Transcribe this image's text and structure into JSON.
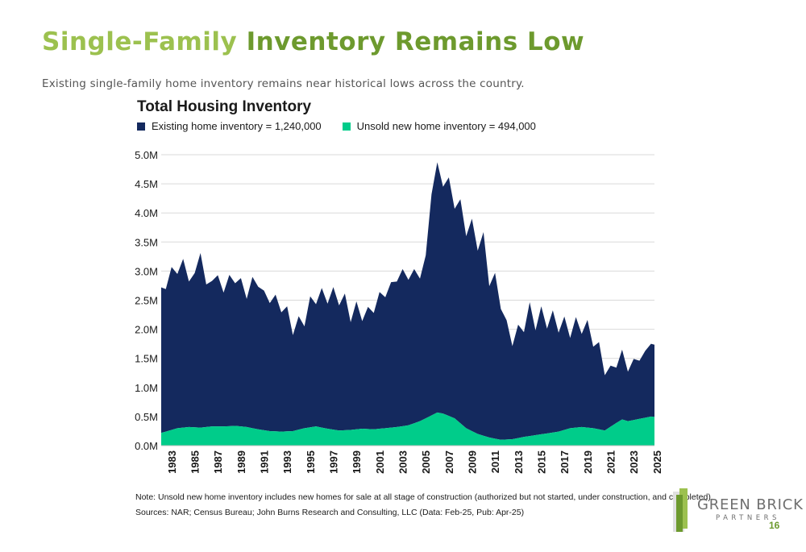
{
  "slide": {
    "title_part1": "Single-Family",
    "title_part2": "Inventory Remains Low",
    "subtitle": "Existing single-family home inventory remains near historical lows across the country.",
    "note": "Note: Unsold new home inventory includes new homes for sale at all stage of construction (authorized but not started, under construction, and completed).",
    "sources": "Sources: NAR; Census Bureau; John Burns Research and Consulting, LLC (Data: Feb-25, Pub: Apr-25)",
    "logo_line1": "GREEN BRICK",
    "logo_line2": "PARTNERS",
    "page_number": "16",
    "colors": {
      "title_light": "#9cc14f",
      "title_dark": "#6d9a2e",
      "existing": "#14295e",
      "new": "#00cc8a"
    }
  },
  "chart_data": {
    "type": "area",
    "stacked": true,
    "title": "Total Housing Inventory",
    "ylim": [
      0,
      5000000
    ],
    "y_ticks": [
      "0.0M",
      "0.5M",
      "1.0M",
      "1.5M",
      "2.0M",
      "2.5M",
      "3.0M",
      "3.5M",
      "4.0M",
      "4.5M",
      "5.0M"
    ],
    "x_ticks": [
      "1983",
      "1985",
      "1987",
      "1989",
      "1991",
      "1993",
      "1995",
      "1997",
      "1999",
      "2001",
      "2003",
      "2005",
      "2007",
      "2009",
      "2011",
      "2013",
      "2015",
      "2017",
      "2019",
      "2021",
      "2023",
      "2025"
    ],
    "x_range": [
      1982.6,
      2025.3
    ],
    "grid": true,
    "legend_position": "top-left",
    "series": [
      {
        "name": "Existing home inventory = 1,240,000",
        "color": "#14295e",
        "x": [
          1982.6,
          1983,
          1983.5,
          1984,
          1984.5,
          1985,
          1985.5,
          1986,
          1986.5,
          1987,
          1987.5,
          1988,
          1988.5,
          1989,
          1989.5,
          1990,
          1990.5,
          1991,
          1991.5,
          1992,
          1992.5,
          1993,
          1993.5,
          1994,
          1994.5,
          1995,
          1995.5,
          1996,
          1996.5,
          1997,
          1997.5,
          1998,
          1998.5,
          1999,
          1999.5,
          2000,
          2000.5,
          2001,
          2001.5,
          2002,
          2002.5,
          2003,
          2003.5,
          2004,
          2004.5,
          2005,
          2005.5,
          2006,
          2006.5,
          2007,
          2007.5,
          2008,
          2008.5,
          2009,
          2009.5,
          2010,
          2010.5,
          2011,
          2011.5,
          2012,
          2012.5,
          2013,
          2013.5,
          2014,
          2014.5,
          2015,
          2015.5,
          2016,
          2016.5,
          2017,
          2017.5,
          2018,
          2018.5,
          2019,
          2019.5,
          2020,
          2020.5,
          2021,
          2021.5,
          2022,
          2022.5,
          2023,
          2023.5,
          2024,
          2024.5,
          2025,
          2025.3
        ],
        "values": [
          2500000,
          2450000,
          2800000,
          2650000,
          2900000,
          2500000,
          2650000,
          3000000,
          2450000,
          2500000,
          2600000,
          2300000,
          2600000,
          2450000,
          2550000,
          2200000,
          2600000,
          2450000,
          2400000,
          2200000,
          2350000,
          2050000,
          2150000,
          1650000,
          1950000,
          1750000,
          2250000,
          2100000,
          2400000,
          2150000,
          2450000,
          2150000,
          2350000,
          1850000,
          2200000,
          1850000,
          2100000,
          2000000,
          2350000,
          2250000,
          2500000,
          2500000,
          2700000,
          2500000,
          2650000,
          2450000,
          2800000,
          3800000,
          4300000,
          3900000,
          4100000,
          3600000,
          3850000,
          3300000,
          3650000,
          3150000,
          3500000,
          2600000,
          2850000,
          2250000,
          2050000,
          1600000,
          1950000,
          1800000,
          2300000,
          1800000,
          2200000,
          1800000,
          2100000,
          1700000,
          1950000,
          1550000,
          1900000,
          1600000,
          1850000,
          1400000,
          1500000,
          950000,
          1050000,
          950000,
          1200000,
          850000,
          1050000,
          1000000,
          1150000,
          1250000,
          1240000
        ]
      },
      {
        "name": "Unsold new home inventory = 494,000",
        "color": "#00cc8a",
        "x": [
          1982.6,
          1983,
          1984,
          1985,
          1986,
          1987,
          1988,
          1989,
          1990,
          1991,
          1992,
          1993,
          1994,
          1995,
          1996,
          1997,
          1998,
          1999,
          2000,
          2001,
          2002,
          2003,
          2004,
          2005,
          2006,
          2006.5,
          2007,
          2008,
          2009,
          2010,
          2011,
          2012,
          2013,
          2014,
          2015,
          2016,
          2017,
          2018,
          2019,
          2020,
          2021,
          2022,
          2022.5,
          2023,
          2024,
          2025,
          2025.3
        ],
        "values": [
          220000,
          240000,
          300000,
          320000,
          310000,
          330000,
          330000,
          340000,
          320000,
          280000,
          250000,
          240000,
          250000,
          300000,
          330000,
          290000,
          260000,
          270000,
          290000,
          280000,
          300000,
          320000,
          350000,
          420000,
          520000,
          570000,
          550000,
          470000,
          300000,
          200000,
          140000,
          100000,
          110000,
          150000,
          180000,
          210000,
          240000,
          300000,
          320000,
          300000,
          260000,
          390000,
          450000,
          420000,
          460000,
          500000,
          494000
        ]
      }
    ]
  }
}
